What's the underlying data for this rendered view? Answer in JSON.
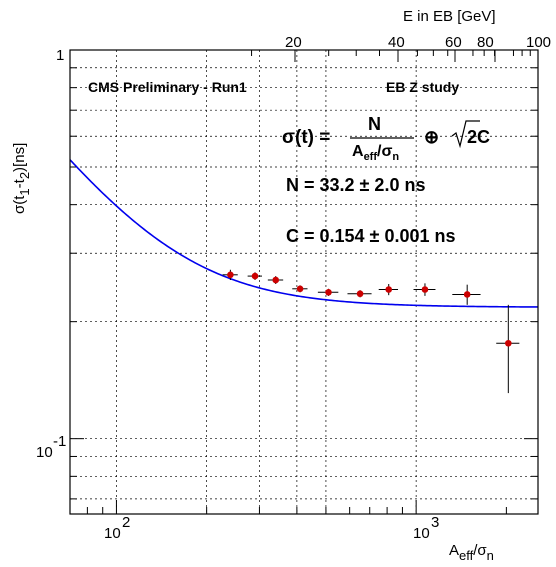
{
  "chart_data": {
    "type": "scatter",
    "xaxis": {
      "label_main": "A",
      "label_sub1": "eff",
      "label_mid": "/σ",
      "label_sub2": "n",
      "scale": "log",
      "range": [
        70,
        2550
      ],
      "tick_labels": [
        "10",
        "2",
        "10",
        "3"
      ]
    },
    "yaxis": {
      "label_pre": "σ(t",
      "label_sub1": "1",
      "label_mid": "-t",
      "label_sub2": "2",
      "label_post": ")[ns]",
      "scale": "log",
      "range": [
        0.064,
        1.0
      ],
      "tick_labels": [
        "10",
        "-1",
        "1"
      ]
    },
    "top_axis": {
      "title": "E in EB [GeV]",
      "tick_labels": [
        "20",
        "40",
        "60",
        "80",
        "100"
      ],
      "tick_values_gev": [
        20,
        40,
        60,
        80,
        100
      ]
    },
    "grid": true,
    "annotations": {
      "experiment": "CMS Preliminary - Run1",
      "study": "EB Z study",
      "formula_lhs": "σ(t) =",
      "formula_num": "N",
      "formula_den_main": "A",
      "formula_den_sub1": "eff",
      "formula_den_mid": "/σ",
      "formula_den_sub2": "n",
      "formula_oplus": "⊕",
      "formula_rhs": "2C",
      "n_line": "N = 33.2 ± 2.0 ns",
      "c_line": "C = 0.154 ± 0.001 ns"
    },
    "fit": {
      "N": 33.2,
      "C": 0.154,
      "color": "#0000ee"
    },
    "points": [
      {
        "x": 240,
        "y": 0.264,
        "xerr": 14,
        "yerr": 0.008
      },
      {
        "x": 290,
        "y": 0.262,
        "xerr": 16,
        "yerr": 0.006
      },
      {
        "x": 340,
        "y": 0.256,
        "xerr": 20,
        "yerr": 0.006
      },
      {
        "x": 410,
        "y": 0.243,
        "xerr": 24,
        "yerr": 0.005
      },
      {
        "x": 510,
        "y": 0.238,
        "xerr": 40,
        "yerr": 0.005
      },
      {
        "x": 650,
        "y": 0.236,
        "xerr": 60,
        "yerr": 0.005
      },
      {
        "x": 810,
        "y": 0.242,
        "xerr": 60,
        "yerr": 0.008
      },
      {
        "x": 1070,
        "y": 0.242,
        "xerr": 90,
        "yerr": 0.009
      },
      {
        "x": 1480,
        "y": 0.235,
        "xerr": 160,
        "yerr": 0.014
      },
      {
        "x": 2030,
        "y": 0.176,
        "xerr": 180,
        "yerr": 0.045
      }
    ],
    "marker_color": "#cc0000"
  }
}
